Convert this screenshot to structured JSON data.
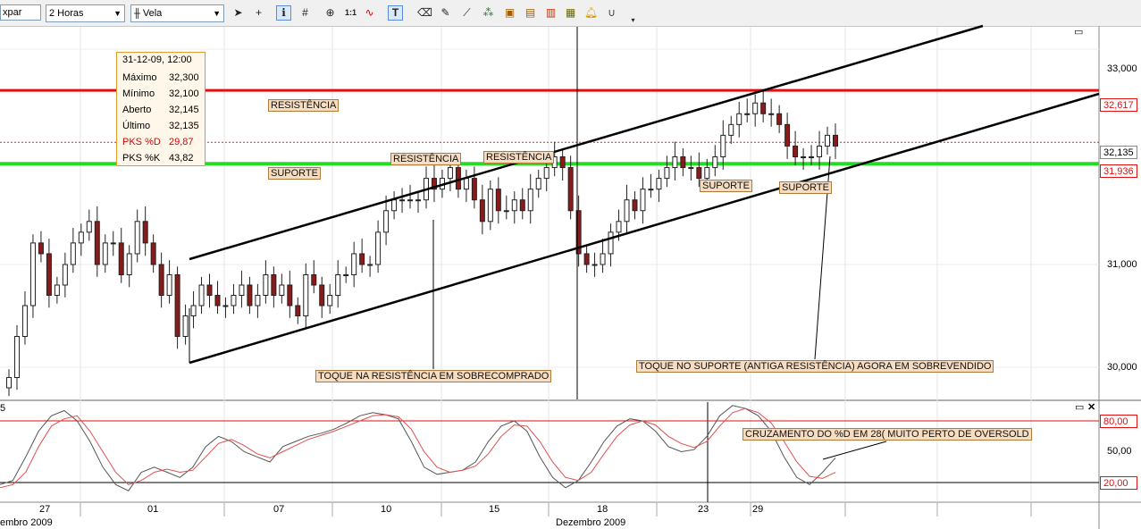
{
  "toolbar": {
    "symbol_value": "xpar",
    "interval": "2 Horas",
    "chart_style": "Vela",
    "cursor_tool": "1:1"
  },
  "symbol_label": "xpar",
  "study_label": "5",
  "info_box": {
    "date": "31-12-09, 12:00",
    "rows": [
      {
        "key": "Máximo",
        "value": "32,300",
        "color": "#000000"
      },
      {
        "key": "Mínimo",
        "value": "32,100",
        "color": "#000000"
      },
      {
        "key": "Aberto",
        "value": "32,145",
        "color": "#000000"
      },
      {
        "key": "Último",
        "value": "32,135",
        "color": "#000000"
      },
      {
        "key": "PKS %D",
        "value": "29,87",
        "color": "#d40000"
      },
      {
        "key": "PKS %K",
        "value": "43,82",
        "color": "#000000"
      }
    ]
  },
  "annotations": {
    "resistencia_1": "RESISTÊNCIA",
    "resistencia_2": "RESISTÊNCIA",
    "resistencia_3": "RESISTÊNCIA",
    "suporte_1": "SUPORTE",
    "suporte_2": "SUPORTE",
    "suporte_3": "SUPORTE",
    "toque_resistencia": "TOQUE NA RESISTÊNCIA EM SOBRECOMPRADO",
    "toque_suporte": "TOQUE NO SUPORTE (ANTIGA RESISTÊNCIA) AGORA EM SOBREVENDIDO",
    "cruzamento": "CRUZAMENTO DO %D EM 28( MUITO PERTO DE OVERSOLD"
  },
  "price_labels": {
    "resistance": "32,617",
    "last": "32,135",
    "support": "31,936"
  },
  "colors": {
    "resistance": "#e01010",
    "support": "#22dd22",
    "candle_up": "#ffffff",
    "candle_down": "#8b1a1a",
    "stoch_k": "#555555",
    "stoch_d": "#e05050",
    "label_bg": "#f6dcc0"
  },
  "chart_data": [
    {
      "type": "candlestick",
      "interval": "2 Horas",
      "y_ticks": [
        "33,000",
        "31,000",
        "30,000"
      ],
      "y_tick_values": [
        33.0,
        31.0,
        30.0
      ],
      "ylim": [
        29.6,
        33.5
      ],
      "x_ticks": [
        "27",
        "01",
        "07",
        "10",
        "15",
        "18",
        "23",
        "29"
      ],
      "month_labels": [
        "embro 2009",
        "Dezembro 2009"
      ],
      "horizontal_lines": [
        {
          "name": "resistance",
          "value": 32.617
        },
        {
          "name": "last",
          "value": 32.135
        },
        {
          "name": "support",
          "value": 31.936
        }
      ],
      "values_close": [
        29.9,
        30.3,
        30.6,
        31.2,
        31.1,
        30.7,
        30.8,
        31.0,
        31.2,
        31.3,
        31.4,
        31.0,
        31.2,
        31.2,
        30.9,
        31.1,
        31.4,
        31.2,
        31.0,
        30.7,
        30.9,
        30.3,
        30.5,
        30.6,
        30.8,
        30.7,
        30.6,
        30.6,
        30.7,
        30.8,
        30.6,
        30.7,
        30.9,
        30.7,
        30.8,
        30.6,
        30.5,
        30.9,
        30.8,
        30.6,
        30.7,
        30.9,
        30.9,
        31.1,
        31.0,
        31.0,
        31.3,
        31.5,
        31.6,
        31.6,
        31.6,
        31.6,
        31.8,
        31.7,
        31.8,
        31.9,
        31.7,
        31.8,
        31.6,
        31.4,
        31.7,
        31.5,
        31.5,
        31.6,
        31.5,
        31.7,
        31.8,
        31.9,
        32.0,
        31.9,
        31.5,
        31.1,
        31.0,
        31.0,
        31.1,
        31.3,
        31.4,
        31.6,
        31.5,
        31.7,
        31.7,
        31.8,
        31.9,
        32.0,
        31.9,
        31.9,
        31.8,
        31.9,
        32.0,
        32.2,
        32.3,
        32.4,
        32.4,
        32.5,
        32.4,
        32.4,
        32.3,
        32.1,
        32.0,
        32.0,
        32.0,
        32.1,
        32.2,
        32.1
      ]
    },
    {
      "type": "line",
      "name": "PKS",
      "y_ticks": [
        "80,00",
        "50,00",
        "20,00"
      ],
      "y_tick_values": [
        80,
        50,
        20
      ],
      "ylim": [
        0,
        100
      ],
      "series": [
        {
          "name": "PKS %K",
          "values": [
            18,
            22,
            45,
            70,
            85,
            90,
            80,
            60,
            35,
            18,
            12,
            30,
            35,
            30,
            25,
            35,
            55,
            65,
            60,
            50,
            45,
            40,
            55,
            60,
            65,
            68,
            72,
            78,
            85,
            88,
            86,
            82,
            60,
            35,
            28,
            30,
            32,
            40,
            60,
            75,
            80,
            70,
            45,
            25,
            15,
            22,
            40,
            60,
            75,
            82,
            80,
            70,
            55,
            50,
            52,
            65,
            85,
            95,
            92,
            85,
            70,
            45,
            25,
            18,
            30,
            44
          ]
        },
        {
          "name": "PKS %D",
          "values": [
            15,
            18,
            30,
            55,
            75,
            82,
            85,
            70,
            50,
            30,
            18,
            22,
            30,
            33,
            30,
            32,
            45,
            58,
            62,
            56,
            48,
            44,
            50,
            56,
            62,
            66,
            70,
            75,
            80,
            85,
            86,
            84,
            72,
            50,
            35,
            30,
            32,
            36,
            48,
            65,
            76,
            75,
            60,
            40,
            25,
            22,
            30,
            48,
            65,
            76,
            80,
            76,
            65,
            58,
            54,
            60,
            75,
            88,
            92,
            88,
            78,
            60,
            40,
            26,
            24,
            29.87
          ]
        }
      ]
    }
  ]
}
